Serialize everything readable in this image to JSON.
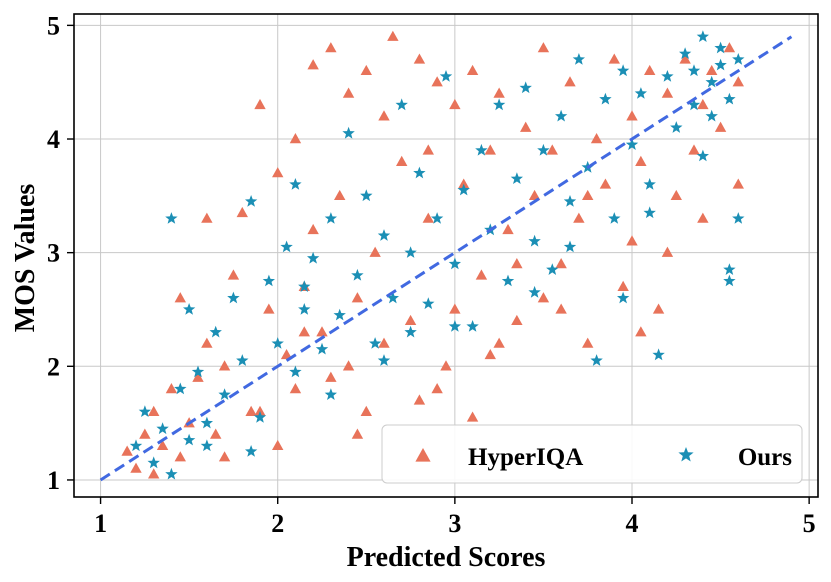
{
  "chart_data": {
    "type": "scatter",
    "title": "",
    "xlabel": "Predicted Scores",
    "ylabel": "MOS Values",
    "xlim": [
      0.85,
      5.05
    ],
    "ylim": [
      0.85,
      5.1
    ],
    "xticks": [
      "1",
      "2",
      "3",
      "4",
      "5"
    ],
    "yticks": [
      "1",
      "2",
      "3",
      "4",
      "5"
    ],
    "grid": true,
    "legend": {
      "placement": "lower-right",
      "columns": 2
    },
    "reference_line": {
      "name": "identity",
      "style": "dashed",
      "color": "#4169e1",
      "x": [
        1.0,
        4.9
      ],
      "y": [
        1.0,
        4.9
      ]
    },
    "series": [
      {
        "name": "HyperIQA",
        "marker": "triangle",
        "color": "#e8735a",
        "points": [
          [
            1.15,
            1.25
          ],
          [
            1.2,
            1.1
          ],
          [
            1.25,
            1.4
          ],
          [
            1.3,
            1.05
          ],
          [
            1.3,
            1.6
          ],
          [
            1.35,
            1.3
          ],
          [
            1.4,
            1.8
          ],
          [
            1.45,
            1.2
          ],
          [
            1.45,
            2.6
          ],
          [
            1.5,
            1.5
          ],
          [
            1.55,
            1.9
          ],
          [
            1.6,
            2.2
          ],
          [
            1.6,
            3.3
          ],
          [
            1.65,
            1.4
          ],
          [
            1.7,
            2.0
          ],
          [
            1.75,
            2.8
          ],
          [
            1.8,
            3.35
          ],
          [
            1.85,
            1.6
          ],
          [
            1.9,
            4.3
          ],
          [
            1.95,
            2.5
          ],
          [
            2.0,
            1.3
          ],
          [
            2.0,
            3.7
          ],
          [
            2.05,
            2.1
          ],
          [
            2.1,
            4.0
          ],
          [
            2.1,
            1.8
          ],
          [
            2.15,
            2.7
          ],
          [
            2.2,
            4.65
          ],
          [
            2.2,
            3.2
          ],
          [
            2.25,
            2.3
          ],
          [
            2.3,
            4.8
          ],
          [
            2.3,
            1.9
          ],
          [
            2.35,
            3.5
          ],
          [
            2.4,
            2.0
          ],
          [
            2.4,
            4.4
          ],
          [
            2.45,
            2.6
          ],
          [
            2.5,
            4.6
          ],
          [
            2.5,
            1.6
          ],
          [
            2.55,
            3.0
          ],
          [
            2.6,
            4.2
          ],
          [
            2.6,
            2.2
          ],
          [
            2.65,
            4.9
          ],
          [
            2.7,
            3.8
          ],
          [
            2.75,
            2.4
          ],
          [
            2.8,
            4.7
          ],
          [
            2.8,
            1.7
          ],
          [
            2.85,
            3.3
          ],
          [
            2.9,
            4.5
          ],
          [
            2.95,
            2.0
          ],
          [
            3.0,
            4.3
          ],
          [
            3.0,
            2.5
          ],
          [
            3.05,
            3.6
          ],
          [
            3.1,
            1.55
          ],
          [
            3.1,
            4.6
          ],
          [
            3.15,
            2.8
          ],
          [
            3.2,
            3.9
          ],
          [
            3.2,
            2.1
          ],
          [
            3.25,
            4.4
          ],
          [
            3.3,
            3.2
          ],
          [
            3.35,
            2.4
          ],
          [
            3.4,
            4.1
          ],
          [
            3.45,
            3.5
          ],
          [
            3.5,
            4.8
          ],
          [
            3.5,
            2.6
          ],
          [
            3.55,
            3.9
          ],
          [
            3.6,
            2.9
          ],
          [
            3.65,
            4.5
          ],
          [
            3.7,
            3.3
          ],
          [
            3.75,
            2.2
          ],
          [
            3.8,
            4.0
          ],
          [
            3.85,
            3.6
          ],
          [
            3.9,
            4.7
          ],
          [
            3.95,
            2.7
          ],
          [
            4.0,
            4.2
          ],
          [
            4.0,
            3.1
          ],
          [
            4.05,
            3.8
          ],
          [
            4.1,
            4.6
          ],
          [
            4.15,
            2.5
          ],
          [
            4.2,
            4.4
          ],
          [
            4.25,
            3.5
          ],
          [
            4.3,
            4.7
          ],
          [
            4.35,
            3.9
          ],
          [
            4.4,
            4.3
          ],
          [
            4.4,
            3.3
          ],
          [
            4.45,
            4.6
          ],
          [
            4.5,
            4.1
          ],
          [
            4.55,
            4.8
          ],
          [
            4.6,
            4.5
          ],
          [
            4.6,
            3.6
          ],
          [
            3.6,
            2.5
          ],
          [
            2.9,
            1.8
          ],
          [
            1.7,
            1.2
          ],
          [
            2.45,
            1.4
          ],
          [
            3.35,
            2.9
          ],
          [
            4.2,
            3.0
          ],
          [
            4.05,
            2.3
          ],
          [
            3.75,
            3.5
          ],
          [
            2.85,
            3.9
          ],
          [
            2.15,
            2.3
          ],
          [
            1.9,
            1.6
          ],
          [
            3.25,
            2.2
          ]
        ]
      },
      {
        "name": "Ours",
        "marker": "star",
        "color": "#1b8fb5",
        "points": [
          [
            1.2,
            1.3
          ],
          [
            1.25,
            1.6
          ],
          [
            1.3,
            1.15
          ],
          [
            1.35,
            1.45
          ],
          [
            1.4,
            1.05
          ],
          [
            1.4,
            3.3
          ],
          [
            1.45,
            1.8
          ],
          [
            1.5,
            1.35
          ],
          [
            1.5,
            2.5
          ],
          [
            1.55,
            1.95
          ],
          [
            1.6,
            1.5
          ],
          [
            1.65,
            2.3
          ],
          [
            1.7,
            1.75
          ],
          [
            1.75,
            2.6
          ],
          [
            1.8,
            2.05
          ],
          [
            1.85,
            3.45
          ],
          [
            1.9,
            1.55
          ],
          [
            1.95,
            2.75
          ],
          [
            2.0,
            2.2
          ],
          [
            2.05,
            3.05
          ],
          [
            2.1,
            1.95
          ],
          [
            2.1,
            3.6
          ],
          [
            2.15,
            2.5
          ],
          [
            2.2,
            2.95
          ],
          [
            2.25,
            2.15
          ],
          [
            2.3,
            3.3
          ],
          [
            2.35,
            2.45
          ],
          [
            2.4,
            4.05
          ],
          [
            2.45,
            2.8
          ],
          [
            2.5,
            3.5
          ],
          [
            2.55,
            2.2
          ],
          [
            2.6,
            3.15
          ],
          [
            2.65,
            2.6
          ],
          [
            2.7,
            4.3
          ],
          [
            2.75,
            3.0
          ],
          [
            2.8,
            3.7
          ],
          [
            2.85,
            2.55
          ],
          [
            2.9,
            3.3
          ],
          [
            2.95,
            4.55
          ],
          [
            3.0,
            2.9
          ],
          [
            3.05,
            3.55
          ],
          [
            3.1,
            2.35
          ],
          [
            3.15,
            3.9
          ],
          [
            3.2,
            3.2
          ],
          [
            3.25,
            4.3
          ],
          [
            3.3,
            2.75
          ],
          [
            3.35,
            3.65
          ],
          [
            3.4,
            4.45
          ],
          [
            3.45,
            3.1
          ],
          [
            3.5,
            3.9
          ],
          [
            3.55,
            2.85
          ],
          [
            3.6,
            4.2
          ],
          [
            3.65,
            3.45
          ],
          [
            3.7,
            4.7
          ],
          [
            3.75,
            3.75
          ],
          [
            3.8,
            2.05
          ],
          [
            3.85,
            4.35
          ],
          [
            3.9,
            3.3
          ],
          [
            3.95,
            4.6
          ],
          [
            4.0,
            3.95
          ],
          [
            4.05,
            4.4
          ],
          [
            4.1,
            3.6
          ],
          [
            4.15,
            2.1
          ],
          [
            4.2,
            4.55
          ],
          [
            4.25,
            4.1
          ],
          [
            4.3,
            4.75
          ],
          [
            4.35,
            4.3
          ],
          [
            4.4,
            4.9
          ],
          [
            4.4,
            3.85
          ],
          [
            4.45,
            4.5
          ],
          [
            4.5,
            4.65
          ],
          [
            4.55,
            4.35
          ],
          [
            4.55,
            2.85
          ],
          [
            4.6,
            4.7
          ],
          [
            4.6,
            3.3
          ],
          [
            4.5,
            4.8
          ],
          [
            4.45,
            4.2
          ],
          [
            4.35,
            4.6
          ],
          [
            4.55,
            2.75
          ],
          [
            3.0,
            2.35
          ],
          [
            2.3,
            1.75
          ],
          [
            1.85,
            1.25
          ],
          [
            2.6,
            2.05
          ],
          [
            3.45,
            2.65
          ],
          [
            3.65,
            3.05
          ],
          [
            4.1,
            3.35
          ],
          [
            3.95,
            2.6
          ],
          [
            2.15,
            2.7
          ],
          [
            1.6,
            1.3
          ],
          [
            2.75,
            2.3
          ]
        ]
      }
    ]
  }
}
